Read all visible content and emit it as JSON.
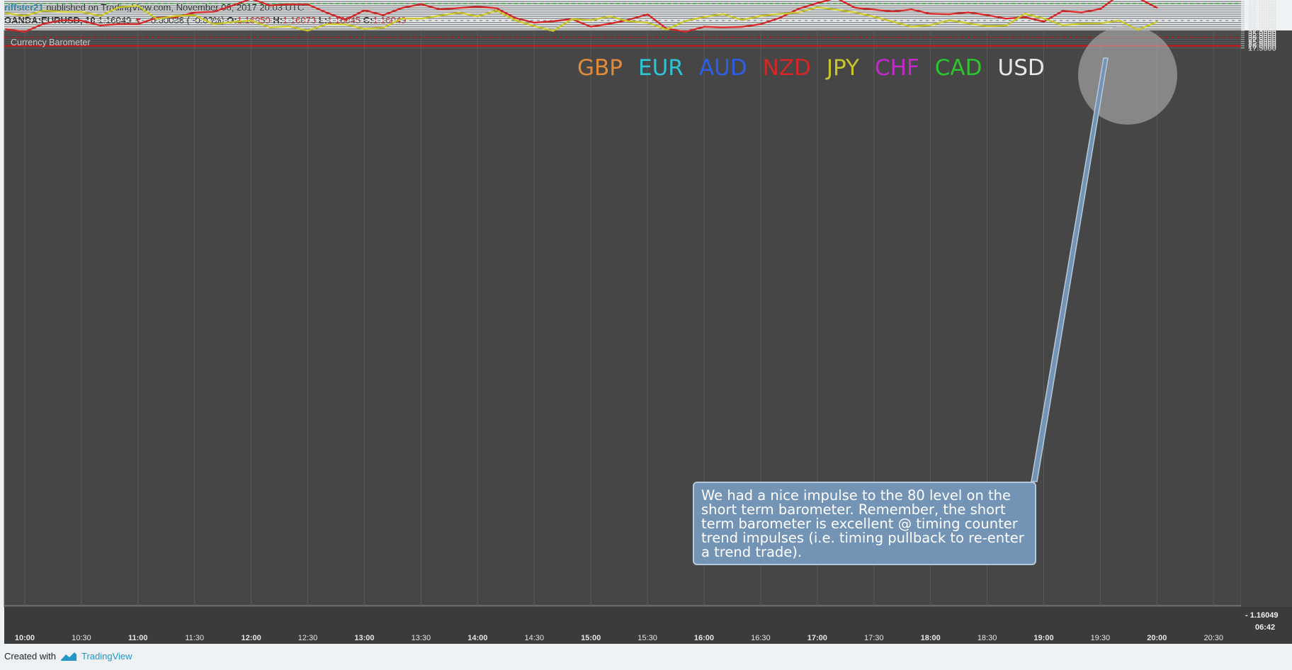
{
  "header": {
    "user": "riffster21",
    "published": " published on TradingView.com, November 06, 2017 20:03 UTC",
    "symbol": "OANDA:EURUSD, 10",
    "price": "1.16049",
    "change": "−0.00036 (−0.03%)",
    "open_label": "O:",
    "open": "1.16059",
    "high_label": "H:",
    "high": "1.16073",
    "low_label": "L:",
    "low": "1.16045",
    "close_label": "C:",
    "close": "1.16049"
  },
  "indicator_title": "Currency Barometer",
  "annotation": "We had a nice impulse to the 80 level on the short term barometer. Remember, the short term barometer is excellent @ timing counter trend impulses (i.e. timing pullback to re-enter a trend trade).",
  "footer": {
    "created_with": "Created with",
    "brand": "TradingView"
  },
  "price_axis": {
    "last_price": "1.16049",
    "countdown": "06:42"
  },
  "chart_data": {
    "type": "line",
    "title": "Currency Barometer",
    "legend": [
      {
        "name": "GBP",
        "color": "#e08a3c"
      },
      {
        "name": "EUR",
        "color": "#2ec4d6"
      },
      {
        "name": "AUD",
        "color": "#2c5ee8"
      },
      {
        "name": "NZD",
        "color": "#d42727"
      },
      {
        "name": "JPY",
        "color": "#c8c62a"
      },
      {
        "name": "CHF",
        "color": "#c329c9"
      },
      {
        "name": "CAD",
        "color": "#2ec42e"
      },
      {
        "name": "USD",
        "color": "#e8e8e8"
      }
    ],
    "legend_placement": "top-right",
    "ylim": [
      15,
      84
    ],
    "y_ticks": [
      "82.5000",
      "80.0000",
      "77.5000",
      "75.0000",
      "72.5000",
      "70.0000",
      "67.5000",
      "65.0000",
      "62.5000",
      "60.0000",
      "57.5000",
      "55.0000",
      "52.5000",
      "50.0000",
      "47.5000",
      "45.0000",
      "42.5000",
      "40.0000",
      "37.5000",
      "35.0000",
      "32.5000",
      "30.0000",
      "27.5000",
      "25.0000",
      "22.5000",
      "20.0000",
      "17.5000"
    ],
    "x_ticks": [
      "10:00",
      "10:30",
      "11:00",
      "11:30",
      "12:00",
      "12:30",
      "13:00",
      "13:30",
      "14:00",
      "14:30",
      "15:00",
      "15:30",
      "16:00",
      "16:30",
      "17:00",
      "17:30",
      "18:00",
      "18:30",
      "19:00",
      "19:30",
      "20:00",
      "20:30"
    ],
    "major_x_ticks": [
      "10:00",
      "11:00",
      "12:00",
      "13:00",
      "14:00",
      "15:00",
      "16:00",
      "17:00",
      "18:00",
      "19:00",
      "20:00"
    ],
    "bar_minutes": 10,
    "x_start": "09:50",
    "levels": [
      {
        "value": 80,
        "color": "#2f9a2f",
        "style": "dashed"
      },
      {
        "value": 70,
        "color": "#2f9a2f",
        "style": "dashed"
      },
      {
        "value": 50,
        "color": "#d8d8d8",
        "style": "dashed"
      },
      {
        "value": 30,
        "color": "#b02020",
        "style": "dashed"
      },
      {
        "value": 20,
        "color": "#d41818",
        "style": "solid"
      }
    ],
    "grid": true,
    "series": [
      {
        "name": "NZD",
        "color": "#d42727",
        "values": [
          39.8,
          36.6,
          46.2,
          50.3,
          49.9,
          44.2,
          45.8,
          45.7,
          53.2,
          54.0,
          59.5,
          60.3,
          67.6,
          75.7,
          67.7,
          69.2,
          69.0,
          59.3,
          50.9,
          62.1,
          56.3,
          64.9,
          69.4,
          63.1,
          64.8,
          66.3,
          64.6,
          53.0,
          47.4,
          49.1,
          51.7,
          42.6,
          46.3,
          50.9,
          57.3,
          40.5,
          36.6,
          42.6,
          41.9,
          42.4,
          45.7,
          53.0,
          63.8,
          70.7,
          76.6,
          65.1,
          62.9,
          60.7,
          63.1,
          57.9,
          57.4,
          59.8,
          56.4,
          52.2,
          54.0,
          48.6,
          61.2,
          59.6,
          63.6,
          80.3,
          76.7,
          65.0
        ]
      },
      {
        "name": "JPY",
        "color": "#c8c62a",
        "values": [
          58.7,
          55.6,
          61.7,
          60.3,
          60.2,
          55.6,
          65.8,
          67.4,
          51.9,
          55.5,
          56.3,
          45.6,
          48.2,
          49.9,
          41.9,
          43.1,
          38.0,
          45.6,
          45.4,
          39.9,
          41.5,
          52.4,
          52.2,
          55.8,
          59.3,
          54.9,
          61.8,
          50.2,
          43.4,
          37.6,
          51.6,
          50.3,
          54.8,
          49.1,
          47.5,
          39.2,
          49.4,
          54.1,
          57.6,
          50.7,
          55.5,
          57.8,
          59.5,
          65.7,
          62.9,
          59.5,
          54.5,
          48.6,
          42.7,
          44.6,
          50.3,
          46.7,
          43.2,
          43.9,
          58.0,
          52.3,
          44.4,
          46.3,
          46.7,
          50.0,
          38.9,
          48.4
        ]
      }
    ]
  }
}
